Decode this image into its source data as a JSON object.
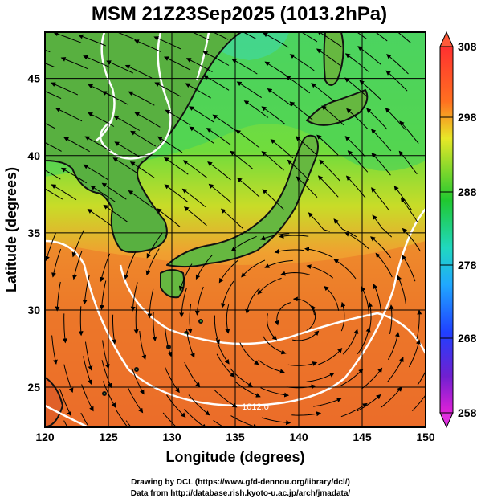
{
  "title": "MSM 21Z23Sep2025 (1013.2hPa)",
  "map": {
    "xlabel": "Longitude (degrees)",
    "ylabel": "Latitude  (degrees)",
    "lon_range": [
      120,
      150
    ],
    "lat_range": [
      22.4,
      48
    ],
    "lon_ticks": [
      "120",
      "125",
      "130",
      "135",
      "140",
      "145",
      "150"
    ],
    "lat_ticks": [
      "25",
      "30",
      "35",
      "40",
      "45"
    ],
    "grid": true,
    "contour_label": "1012.0",
    "colors": {
      "warm": "#e8672a",
      "mid": "#f0a030",
      "green": "#3cd23c",
      "land": "#2a2a2a",
      "contour": "#ffffff"
    }
  },
  "colorbar": {
    "labels": [
      "308",
      "298",
      "288",
      "278",
      "268",
      "258"
    ],
    "range": [
      258,
      308
    ],
    "unit_note": ""
  },
  "credits": {
    "line1": "Drawing by DCL (https://www.gfd-dennou.org/library/dcl/)",
    "line2": "Data from http://database.rish.kyoto-u.ac.jp/arch/jmadata/"
  }
}
